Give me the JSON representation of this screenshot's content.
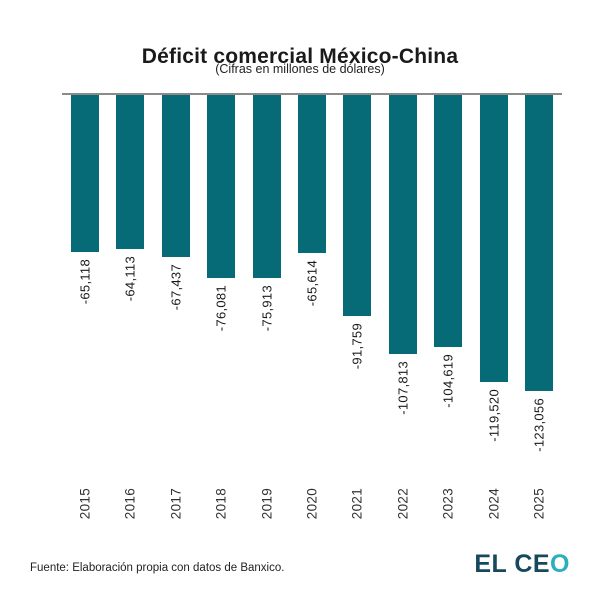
{
  "title": "Déficit comercial México-China",
  "subtitle": "(Cifras en millones de dólares)",
  "source": "Fuente: Elaboración propia con datos de Banxico.",
  "logo": {
    "part1": "EL CE",
    "part2": "O"
  },
  "colors": {
    "bar": "#076b77",
    "axis": "#8a8a8a",
    "logo_dark": "#17495c",
    "logo_accent": "#29b0bd",
    "text": "#1a1a1a"
  },
  "chart_data": {
    "type": "bar",
    "title": "Déficit comercial México-China",
    "subtitle": "(Cifras en millones de dólares)",
    "categories": [
      "2015",
      "2016",
      "2017",
      "2018",
      "2019",
      "2020",
      "2021",
      "2022",
      "2023",
      "2024",
      "2025"
    ],
    "values": [
      -65118,
      -64113,
      -67437,
      -76081,
      -75913,
      -65614,
      -91759,
      -107813,
      -104619,
      -119520,
      -123056
    ],
    "labels": [
      "-65,118",
      "-64,113",
      "-67,437",
      "-76,081",
      "-75,913",
      "-65,614",
      "-91,759",
      "-107,813",
      "-104,619",
      "-119,520",
      "-123,056"
    ],
    "xlabel": "",
    "ylabel": "",
    "ylim": [
      -130000,
      0
    ],
    "baseline": 0,
    "grid": false,
    "legend": false,
    "bar_color": "#076b77",
    "orientation": "vertical",
    "value_label_rotation": 90,
    "source": "Fuente: Elaboración propia con datos de Banxico."
  }
}
